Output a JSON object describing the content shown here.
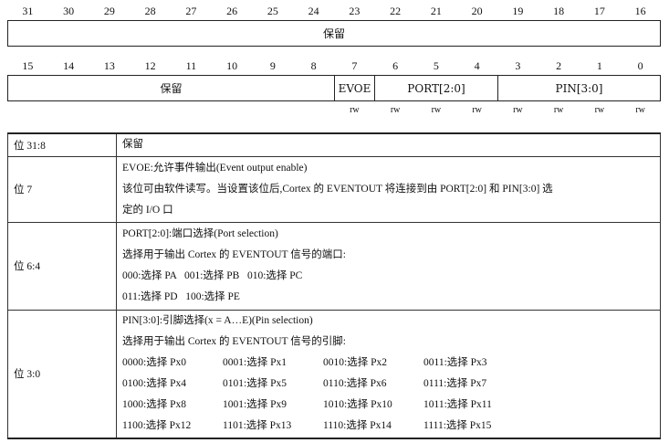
{
  "register": {
    "upper_bits": [
      "31",
      "30",
      "29",
      "28",
      "27",
      "26",
      "25",
      "24",
      "23",
      "22",
      "21",
      "20",
      "19",
      "18",
      "17",
      "16"
    ],
    "upper_field": "保留",
    "lower_bits": [
      "15",
      "14",
      "13",
      "12",
      "11",
      "10",
      "9",
      "8",
      "7",
      "6",
      "5",
      "4",
      "3",
      "2",
      "1",
      "0"
    ],
    "lower_fields": [
      "保留",
      "EVOE",
      "PORT[2:0]",
      "PIN[3:0]"
    ],
    "access": [
      "rw",
      "rw",
      "rw",
      "rw",
      "rw",
      "rw",
      "rw",
      "rw"
    ]
  },
  "table": {
    "rows": [
      {
        "bits": "位 31:8",
        "lines": [
          "保留"
        ]
      },
      {
        "bits": "位 7",
        "lines": [
          "EVOE:允许事件输出(Event output enable)",
          "该位可由软件读写。当设置该位后,Cortex 的 EVENTOUT 将连接到由 PORT[2:0] 和 PIN[3:0] 选",
          "定的 I/O 口"
        ]
      },
      {
        "bits": "位 6:4",
        "lines": [
          "PORT[2:0]:端口选择(Port selection)",
          "选择用于输出 Cortex 的 EVENTOUT 信号的端口:",
          "000:选择 PA   001:选择 PB   010:选择 PC",
          "011:选择 PD   100:选择 PE"
        ]
      },
      {
        "bits": "位 3:0",
        "lines": [
          "PIN[3:0]:引脚选择(x = A…E)(Pin selection)",
          "选择用于输出 Cortex 的 EVENTOUT 信号的引脚:"
        ],
        "options": [
          "0000:选择 Px0",
          "0001:选择 Px1",
          "0010:选择 Px2",
          "0011:选择 Px3",
          "0100:选择 Px4",
          "0101:选择 Px5",
          "0110:选择 Px6",
          "0111:选择 Px7",
          "1000:选择 Px8",
          "1001:选择 Px9",
          "1010:选择 Px10",
          "1011:选择 Px11",
          "1100:选择 Px12",
          "1101:选择 Px13",
          "1110:选择 Px14",
          "1111:选择 Px15"
        ]
      }
    ]
  }
}
